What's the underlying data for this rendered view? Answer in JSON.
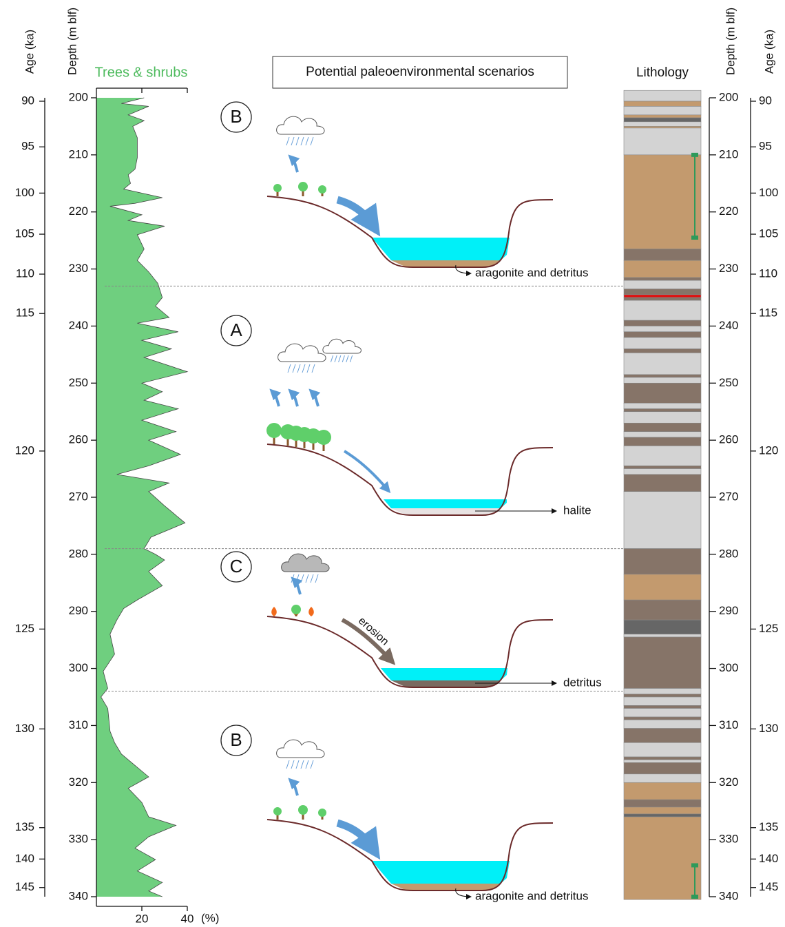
{
  "tree_curve": {
    "title": "Trees & shrubs",
    "color": "#6fcf7f",
    "unit": "(%)",
    "xlim": [
      0,
      40
    ],
    "xticks": [
      20,
      40
    ],
    "depth": [
      200,
      201,
      201.5,
      203,
      204,
      205,
      207,
      210.5,
      212.5,
      213.5,
      215,
      216,
      217.5,
      218.5,
      219,
      220.5,
      221.5,
      222.5,
      224,
      226.5,
      228.5,
      230.5,
      232.5,
      235,
      236.5,
      238.5,
      239.5,
      241,
      242.5,
      244,
      245.5,
      248,
      250,
      251.5,
      253,
      254.5,
      256.5,
      258.5,
      260,
      262.5,
      264.5,
      266,
      267.5,
      269,
      271.5,
      274.5,
      277,
      279,
      280,
      281,
      283,
      285.5,
      288,
      289.5,
      291.5,
      294,
      297.5,
      300.5,
      303.5,
      305,
      307,
      311,
      313,
      315,
      317,
      319,
      321,
      323.5,
      326,
      327.5,
      329.5,
      331.5,
      333.5,
      335.5,
      337.5,
      339,
      340
    ],
    "percent": [
      21,
      11,
      23,
      14,
      21,
      16,
      18,
      18,
      17,
      14,
      15,
      12,
      29,
      17,
      6,
      20,
      14,
      30,
      18,
      21,
      18,
      23,
      27,
      29,
      26,
      32,
      18,
      36,
      20,
      33,
      21,
      40,
      20,
      29,
      21,
      36,
      20,
      35,
      23,
      37,
      23,
      9,
      32,
      23,
      30,
      39,
      24,
      21,
      26,
      30,
      23,
      29,
      18,
      12,
      9,
      6,
      8,
      3,
      5,
      2,
      5,
      6,
      8,
      11,
      17,
      23,
      14,
      20,
      23,
      35,
      23,
      17,
      26,
      18,
      29,
      23,
      29
    ]
  },
  "axes": {
    "age_label": "Age (ka)",
    "depth_label": "Depth (m blf)",
    "ylim": [
      200,
      340
    ],
    "depth_ticks": [
      200,
      210,
      220,
      230,
      240,
      250,
      260,
      270,
      280,
      290,
      300,
      310,
      320,
      330,
      340
    ],
    "age_ticks": [
      {
        "age": 90,
        "depth": 200.6
      },
      {
        "age": 95,
        "depth": 208.6
      },
      {
        "age": 100,
        "depth": 216.7
      },
      {
        "age": 105,
        "depth": 223.9
      },
      {
        "age": 110,
        "depth": 230.9
      },
      {
        "age": 115,
        "depth": 237.8
      },
      {
        "age": 120,
        "depth": 261.9
      },
      {
        "age": 125,
        "depth": 293.1
      },
      {
        "age": 130,
        "depth": 310.6
      },
      {
        "age": 135,
        "depth": 327.9
      },
      {
        "age": 140,
        "depth": 333.4
      },
      {
        "age": 145,
        "depth": 338.4
      }
    ]
  },
  "scenarios_title": "Potential paleoenvironmental scenarios",
  "scenarios": [
    {
      "letter": "B",
      "label": "aragonite and detritus"
    },
    {
      "letter": "A",
      "label": "halite"
    },
    {
      "letter": "C",
      "label": "detritus",
      "arrow_label": "erosion"
    },
    {
      "letter": "B",
      "label": "aragonite and detritus"
    }
  ],
  "boundaries": [
    233,
    279,
    304
  ],
  "lithology": {
    "title": "Lithology",
    "sample_ranges": [
      [
        210,
        224.5
      ],
      [
        334.5,
        340
      ]
    ],
    "range_color": "#2e9a5a",
    "layers": [
      {
        "top": 198.7,
        "bottom": 200.6,
        "color": "#d3d3d3"
      },
      {
        "top": 200.6,
        "bottom": 201.5,
        "color": "#c39a6e"
      },
      {
        "top": 201.5,
        "bottom": 203,
        "color": "#d3d3d3"
      },
      {
        "top": 203,
        "bottom": 203.5,
        "color": "#c39a6e"
      },
      {
        "top": 203.5,
        "bottom": 204.2,
        "color": "#666666"
      },
      {
        "top": 204.2,
        "bottom": 205,
        "color": "#d3d3d3"
      },
      {
        "top": 205,
        "bottom": 205.3,
        "color": "#c39a6e"
      },
      {
        "top": 205.3,
        "bottom": 210,
        "color": "#d3d3d3"
      },
      {
        "top": 210,
        "bottom": 226.5,
        "color": "#c39a6e"
      },
      {
        "top": 226.5,
        "bottom": 228.5,
        "color": "#867468"
      },
      {
        "top": 228.5,
        "bottom": 231.5,
        "color": "#c39a6e"
      },
      {
        "top": 231.5,
        "bottom": 232,
        "color": "#867468"
      },
      {
        "top": 232,
        "bottom": 233.5,
        "color": "#d3d3d3"
      },
      {
        "top": 233.5,
        "bottom": 234.5,
        "color": "#867468"
      },
      {
        "top": 234.5,
        "bottom": 235,
        "color": "#e01010"
      },
      {
        "top": 235,
        "bottom": 235.5,
        "color": "#867468"
      },
      {
        "top": 235.5,
        "bottom": 239,
        "color": "#d3d3d3"
      },
      {
        "top": 239,
        "bottom": 240,
        "color": "#867468"
      },
      {
        "top": 240,
        "bottom": 241,
        "color": "#d3d3d3"
      },
      {
        "top": 241,
        "bottom": 242,
        "color": "#867468"
      },
      {
        "top": 242,
        "bottom": 244,
        "color": "#d3d3d3"
      },
      {
        "top": 244,
        "bottom": 244.7,
        "color": "#867468"
      },
      {
        "top": 244.7,
        "bottom": 248.5,
        "color": "#d3d3d3"
      },
      {
        "top": 248.5,
        "bottom": 249,
        "color": "#867468"
      },
      {
        "top": 249,
        "bottom": 250,
        "color": "#d3d3d3"
      },
      {
        "top": 250,
        "bottom": 253.5,
        "color": "#867468"
      },
      {
        "top": 253.5,
        "bottom": 254.5,
        "color": "#d3d3d3"
      },
      {
        "top": 254.5,
        "bottom": 255,
        "color": "#867468"
      },
      {
        "top": 255,
        "bottom": 257,
        "color": "#d3d3d3"
      },
      {
        "top": 257,
        "bottom": 258.5,
        "color": "#867468"
      },
      {
        "top": 258.5,
        "bottom": 259.5,
        "color": "#d3d3d3"
      },
      {
        "top": 259.5,
        "bottom": 261,
        "color": "#867468"
      },
      {
        "top": 261,
        "bottom": 264.5,
        "color": "#d3d3d3"
      },
      {
        "top": 264.5,
        "bottom": 265,
        "color": "#867468"
      },
      {
        "top": 265,
        "bottom": 266,
        "color": "#d3d3d3"
      },
      {
        "top": 266,
        "bottom": 269,
        "color": "#867468"
      },
      {
        "top": 269,
        "bottom": 279,
        "color": "#d3d3d3"
      },
      {
        "top": 279,
        "bottom": 283.5,
        "color": "#867468"
      },
      {
        "top": 283.5,
        "bottom": 288,
        "color": "#c39a6e"
      },
      {
        "top": 288,
        "bottom": 291.5,
        "color": "#867468"
      },
      {
        "top": 291.5,
        "bottom": 294,
        "color": "#666666"
      },
      {
        "top": 294,
        "bottom": 294.5,
        "color": "#d3d3d3"
      },
      {
        "top": 294.5,
        "bottom": 303.5,
        "color": "#867468"
      },
      {
        "top": 303.5,
        "bottom": 304.5,
        "color": "#d3d3d3"
      },
      {
        "top": 304.5,
        "bottom": 305,
        "color": "#867468"
      },
      {
        "top": 305,
        "bottom": 306.5,
        "color": "#d3d3d3"
      },
      {
        "top": 306.5,
        "bottom": 307,
        "color": "#867468"
      },
      {
        "top": 307,
        "bottom": 308.5,
        "color": "#d3d3d3"
      },
      {
        "top": 308.5,
        "bottom": 309,
        "color": "#867468"
      },
      {
        "top": 309,
        "bottom": 310.5,
        "color": "#d3d3d3"
      },
      {
        "top": 310.5,
        "bottom": 313,
        "color": "#867468"
      },
      {
        "top": 313,
        "bottom": 315.5,
        "color": "#d3d3d3"
      },
      {
        "top": 315.5,
        "bottom": 316,
        "color": "#867468"
      },
      {
        "top": 316,
        "bottom": 316.5,
        "color": "#d3d3d3"
      },
      {
        "top": 316.5,
        "bottom": 318.5,
        "color": "#867468"
      },
      {
        "top": 318.5,
        "bottom": 320,
        "color": "#d3d3d3"
      },
      {
        "top": 320,
        "bottom": 323,
        "color": "#c39a6e"
      },
      {
        "top": 323,
        "bottom": 324.3,
        "color": "#867468"
      },
      {
        "top": 324.3,
        "bottom": 325.5,
        "color": "#c39a6e"
      },
      {
        "top": 325.5,
        "bottom": 326,
        "color": "#666666"
      },
      {
        "top": 326,
        "bottom": 340.5,
        "color": "#c39a6e"
      }
    ]
  }
}
